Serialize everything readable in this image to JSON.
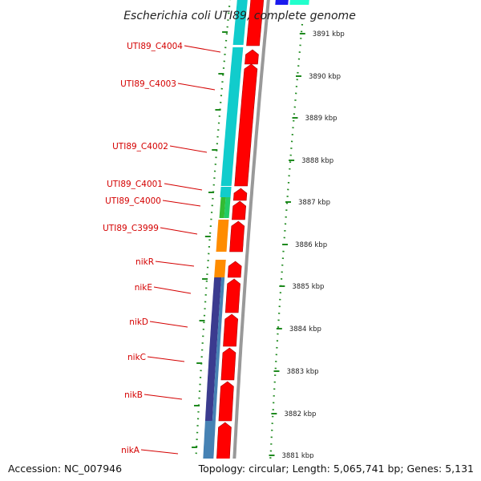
{
  "title": "Escherichia coli UTI89, complete genome",
  "footer": {
    "accession": "Accession: NC_007946",
    "summary": "Topology: circular; Length: 5,065,741 bp; Genes: 5,131"
  },
  "colors": {
    "cds_forward": "#ff0000",
    "backbone": "#999999",
    "tick": "#1f8a1f",
    "label_red": "#d40000",
    "cyan": "#11cccc",
    "green": "#33bb33",
    "orange": "#ff8c00",
    "navy": "#3b3b8f",
    "steelblue": "#4682b4"
  },
  "genes": [
    {
      "name": "UTI89_C4004"
    },
    {
      "name": "UTI89_C4003"
    },
    {
      "name": "UTI89_C4002"
    },
    {
      "name": "UTI89_C4001"
    },
    {
      "name": "UTI89_C4000"
    },
    {
      "name": "UTI89_C3999"
    },
    {
      "name": "nikR"
    },
    {
      "name": "nikE"
    },
    {
      "name": "nikD"
    },
    {
      "name": "nikC"
    },
    {
      "name": "nikB"
    },
    {
      "name": "nikA"
    }
  ],
  "ticks": [
    "3891 kbp",
    "3890 kbp",
    "3889 kbp",
    "3888 kbp",
    "3887 kbp",
    "3886 kbp",
    "3885 kbp",
    "3884 kbp",
    "3883 kbp",
    "3882 kbp",
    "3881 kbp"
  ]
}
